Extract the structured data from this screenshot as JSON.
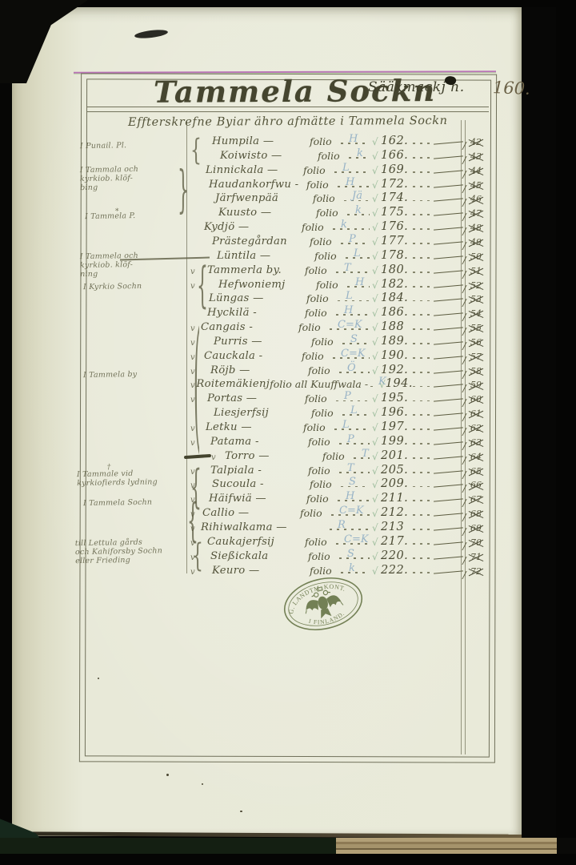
{
  "header": {
    "title": "Tammela Sockn",
    "district": "Sääxmackj h.",
    "page_number": "160."
  },
  "subtitle": "Effterskrefne Byiar ähro afmätte i Tammela Sockn",
  "symbols": {
    "green_check": "√",
    "row_check": "v"
  },
  "colors": {
    "ink": "#53533a",
    "page": "#e8e9d8",
    "pencil_blue": "#8fadc4",
    "check_green": "#93b694",
    "stamp_green": "#6d7b4e",
    "magenta_line": "#b160b0"
  },
  "rows": [
    {
      "name": "Humpila —",
      "folio": "folio",
      "pencil": "H",
      "page": "162.",
      "mnum": "42",
      "check": false,
      "indent": 16,
      "strike": false
    },
    {
      "name": "Koiwisto —",
      "folio": "folio",
      "pencil": "k",
      "page": "166.",
      "mnum": "43",
      "check": false,
      "indent": 26,
      "strike": false
    },
    {
      "name": "Linnickala —",
      "folio": "folio",
      "pencil": "L",
      "page": "169.",
      "mnum": "44",
      "check": false,
      "indent": 8,
      "strike": false
    },
    {
      "name": "Haudankorfwu -",
      "folio": "folio",
      "pencil": "H",
      "page": "172.",
      "mnum": "45",
      "check": false,
      "indent": 12,
      "strike": false
    },
    {
      "name": "Järfwenpää",
      "folio": "folio",
      "pencil": "Jä",
      "page": "174.",
      "mnum": "46",
      "check": false,
      "indent": 20,
      "strike": false
    },
    {
      "name": "Kuusto —",
      "folio": "folio",
      "pencil": "k",
      "page": "175.",
      "mnum": "47",
      "check": false,
      "indent": 24,
      "strike": false
    },
    {
      "name": "Kydjö —",
      "folio": "folio",
      "pencil": "k",
      "page": "176.",
      "mnum": "48",
      "check": false,
      "indent": 6,
      "strike": false
    },
    {
      "name": "Prästegårdan",
      "folio": "folio",
      "pencil": "P",
      "page": "177.",
      "mnum": "49",
      "check": false,
      "indent": 16,
      "strike": false
    },
    {
      "name": "Lüntila —",
      "folio": "folio",
      "pencil": "L",
      "page": "178.",
      "mnum": "50",
      "check": false,
      "indent": 22,
      "strike": false
    },
    {
      "name": "Tammerla by.",
      "folio": "folio",
      "pencil": "T",
      "page": "180.",
      "mnum": "51",
      "check": true,
      "indent": 10,
      "strike": false
    },
    {
      "name": "Hefwoniemj",
      "folio": "folio",
      "pencil": "H",
      "page": "182.",
      "mnum": "52",
      "check": true,
      "indent": 24,
      "strike": false
    },
    {
      "name": "Lüngas —",
      "folio": "folio",
      "pencil": "L",
      "page": "184.",
      "mnum": "53",
      "check": false,
      "indent": 12,
      "strike": false
    },
    {
      "name": "Hyckilä -",
      "folio": "folio",
      "pencil": "H",
      "page": "186.",
      "mnum": "54",
      "check": false,
      "indent": 10,
      "strike": false
    },
    {
      "name": "Cangais -",
      "folio": "folio",
      "pencil": "C=K",
      "page": "188",
      "mnum": "55",
      "check": true,
      "indent": 2,
      "strike": false
    },
    {
      "name": "Purris —",
      "folio": "folio",
      "pencil": "S",
      "page": "189.",
      "mnum": "56",
      "check": true,
      "indent": 18,
      "strike": false
    },
    {
      "name": "Cauckala -",
      "folio": "folio",
      "pencil": "C=K",
      "page": "190.",
      "mnum": "57",
      "check": true,
      "indent": 6,
      "strike": false
    },
    {
      "name": "Röjb —",
      "folio": "folio",
      "pencil": "Ö",
      "page": "192.",
      "mnum": "58",
      "check": true,
      "indent": 14,
      "strike": false
    },
    {
      "name": "Roitemäkienj",
      "folio": "folio all Kuuffwala -",
      "pencil": "K",
      "page": "194.",
      "mnum": "59",
      "check": true,
      "indent": 0,
      "strike": false
    },
    {
      "name": "Portas —",
      "folio": "folio",
      "pencil": "P",
      "page": "195.",
      "mnum": "60",
      "check": true,
      "indent": 10,
      "strike": false
    },
    {
      "name": "Liesjerfsij",
      "folio": "folio",
      "pencil": "L",
      "page": "196.",
      "mnum": "61",
      "check": false,
      "indent": 18,
      "strike": false
    },
    {
      "name": "Letku —",
      "folio": "folio",
      "pencil": "L",
      "page": "197.",
      "mnum": "62",
      "check": true,
      "indent": 8,
      "strike": false
    },
    {
      "name": "Patama -",
      "folio": "folio",
      "pencil": "P",
      "page": "199.",
      "mnum": "63",
      "check": true,
      "indent": 14,
      "strike": false
    },
    {
      "name": "Torro —",
      "folio": "folio",
      "pencil": "T",
      "page": "201.",
      "mnum": "64",
      "check": true,
      "indent": 6,
      "strike": true
    },
    {
      "name": "Talpiala -",
      "folio": "folio",
      "pencil": "T",
      "page": "205.",
      "mnum": "65",
      "check": true,
      "indent": 14,
      "strike": false
    },
    {
      "name": "Sucoula -",
      "folio": "folio",
      "pencil": "S",
      "page": "209.",
      "mnum": "66",
      "check": true,
      "indent": 16,
      "strike": false
    },
    {
      "name": "Häifwiä —",
      "folio": "folio",
      "pencil": "H",
      "page": "211.",
      "mnum": "67",
      "check": true,
      "indent": 12,
      "strike": false
    },
    {
      "name": "Callio —",
      "folio": "folio",
      "pencil": "C=K",
      "page": "212.",
      "mnum": "68",
      "check": true,
      "indent": 4,
      "strike": false
    },
    {
      "name": "Rihiwalkama —",
      "folio": "",
      "pencil": "R",
      "page": "213",
      "mnum": "69",
      "check": true,
      "indent": 2,
      "strike": false
    },
    {
      "name": "Caukajerfsij",
      "folio": "folio",
      "pencil": "C=K",
      "page": "217.",
      "mnum": "70",
      "check": true,
      "indent": 10,
      "strike": false
    },
    {
      "name": "Sießickala",
      "folio": "folio",
      "pencil": "S",
      "page": "220.",
      "mnum": "71",
      "check": true,
      "indent": 14,
      "strike": false
    },
    {
      "name": "Keuro —",
      "folio": "folio",
      "pencil": "k",
      "page": "222.",
      "mnum": "72",
      "check": true,
      "indent": 16,
      "strike": false
    }
  ],
  "margin_notes": [
    {
      "lines": [
        "I Punail. Pl."
      ],
      "mark": ""
    },
    {
      "lines": [
        "I Tammala och",
        "kyrkiob. klöf-",
        "bing"
      ],
      "mark": ""
    },
    {
      "lines": [
        "I Tammela P."
      ],
      "mark": "⁎"
    },
    {
      "lines": [
        "I Tammela och",
        "kyrkiob. klöf-",
        "ning"
      ],
      "mark": ""
    },
    {
      "lines": [
        "I Kyrkio Sochn"
      ],
      "mark": ""
    },
    {
      "lines": [
        "I Tammela by"
      ],
      "mark": ""
    },
    {
      "lines": [
        "I Tammale vid",
        "kyrkiofierds lydning"
      ],
      "mark": "†"
    },
    {
      "lines": [
        "I Tammela Sochn"
      ],
      "mark": ""
    },
    {
      "lines": [
        "till Lettula gårds",
        "och Kahiforsby Sochn",
        "eller Frieding"
      ],
      "mark": ""
    }
  ],
  "stamp": {
    "top_text": "G. LANDTM. KONT.",
    "bottom_text": "I FINLAND."
  }
}
